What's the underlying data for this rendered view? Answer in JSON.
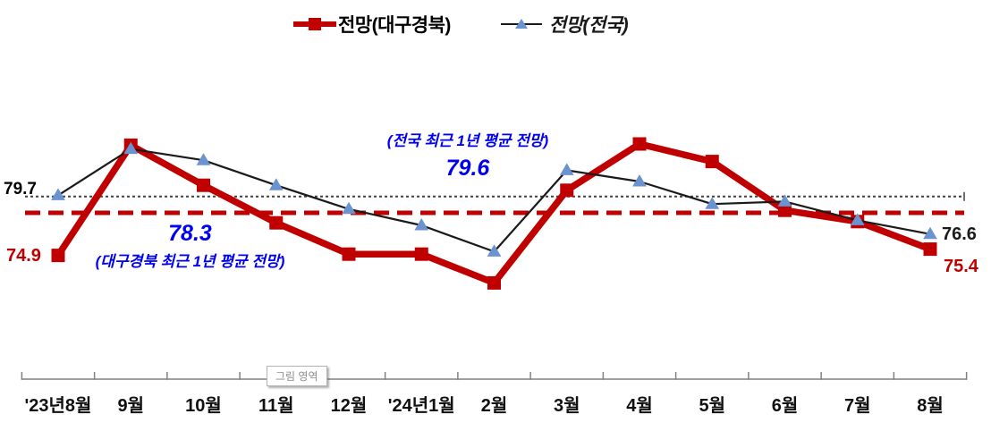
{
  "legend": {
    "items": [
      {
        "label": "전망(대구경북)",
        "color": "#c00000",
        "marker": "square"
      },
      {
        "label": "전망(전국)",
        "color": "#1a1a1a",
        "marker": "triangle",
        "marker_color": "#6b93cf"
      }
    ]
  },
  "annotations": {
    "first_national": "79.7",
    "first_daegu": "74.9",
    "last_national": "76.6",
    "last_daegu": "75.4",
    "national_avg_caption": "(전국 최근 1년 평균 전망)",
    "national_avg_value": "79.6",
    "daegu_avg_value": "78.3",
    "daegu_avg_caption": "(대구경북 최근 1년 평균 전망)",
    "plot_area_label": "그림 영역"
  },
  "colors": {
    "daegu_series": "#c00000",
    "national_line": "#1a1a1a",
    "national_marker": "#6b93cf",
    "annotation_blue": "#0000f0",
    "axis_gray": "#808080"
  },
  "chart_data": {
    "type": "line",
    "categories": [
      "'23년8월",
      "9월",
      "10월",
      "11월",
      "12월",
      "'24년1월",
      "2월",
      "3월",
      "4월",
      "5월",
      "6월",
      "7월",
      "8월"
    ],
    "series": [
      {
        "name": "전망(대구경북)",
        "color": "#c00000",
        "marker": "square",
        "values": [
          74.9,
          83.7,
          80.5,
          77.5,
          75.0,
          75.0,
          72.7,
          80.1,
          83.8,
          82.4,
          78.5,
          77.6,
          75.4
        ]
      },
      {
        "name": "전망(전국)",
        "color": "#1a1a1a",
        "marker": "triangle",
        "marker_color": "#6b93cf",
        "values": [
          79.7,
          83.4,
          82.5,
          80.5,
          78.6,
          77.3,
          75.2,
          81.7,
          80.8,
          79.0,
          79.2,
          77.7,
          76.6
        ]
      }
    ],
    "reference_lines": [
      {
        "name": "전국 최근 1년 평균 전망",
        "value": 79.6,
        "style": "dotted",
        "color": "#404040"
      },
      {
        "name": "대구경북 최근 1년 평균 전망",
        "value": 78.3,
        "style": "dashed",
        "color": "#c00000"
      }
    ],
    "labeled_points": {
      "daegu_first": 74.9,
      "daegu_last": 75.4,
      "national_first": 79.7,
      "national_last": 76.6
    },
    "ylim": [
      71,
      86
    ],
    "grid": false,
    "legend_position": "top"
  }
}
